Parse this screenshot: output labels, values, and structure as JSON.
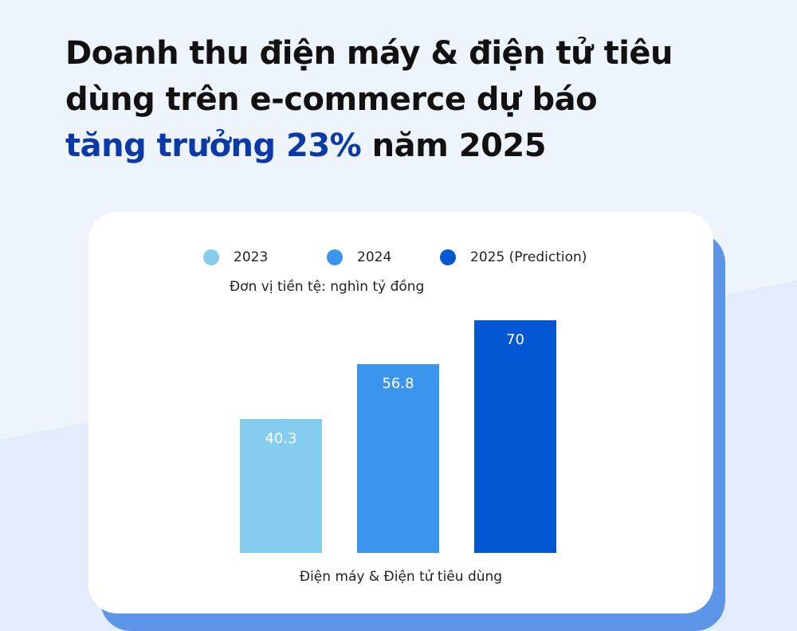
{
  "headline": {
    "line1": "Doanh thu điện máy & điện tử tiêu",
    "line2": "dùng trên e-commerce dự báo",
    "line3_accent": "tăng trưởng 23%",
    "line3_rest": " năm 2025"
  },
  "colors": {
    "accent_text": "#0b3aa8",
    "series_2023": "#85cdee",
    "series_2024": "#3c95ec",
    "series_2025": "#0457d3",
    "card_shadow": "#5d95e8"
  },
  "chart_data": {
    "type": "bar",
    "categories": [
      "Điện máy & Điện tử tiêu dùng"
    ],
    "series": [
      {
        "name": "2023",
        "values": [
          40.3
        ],
        "label": "40.3",
        "color": "#85cdee"
      },
      {
        "name": "2024",
        "values": [
          56.8
        ],
        "label": "56.8",
        "color": "#3c95ec"
      },
      {
        "name": "2025 (Prediction)",
        "values": [
          70
        ],
        "label": "70",
        "color": "#0457d3"
      }
    ],
    "unit_note": "Đơn vị tiền tệ: nghìn tỷ đồng",
    "ylim": [
      0,
      70
    ],
    "grid": false,
    "legend_position": "top"
  }
}
